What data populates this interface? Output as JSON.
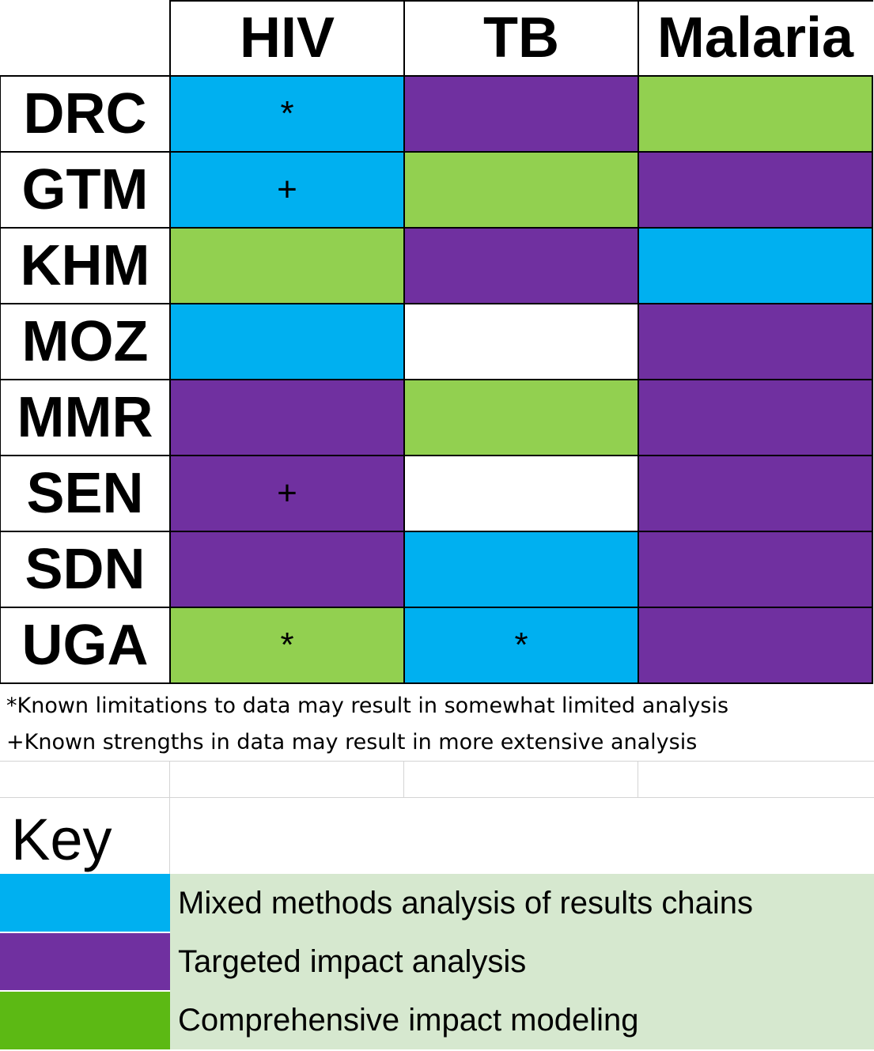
{
  "colors": {
    "mixed": "#00b0f0",
    "targeted": "#7030a0",
    "comprehensive": "#92d050",
    "none": "#ffffff",
    "legend_comprehensive_swatch": "#5cb914",
    "legend_text_bg": "#d6e8cf"
  },
  "table": {
    "columns": [
      "HIV",
      "TB",
      "Malaria"
    ],
    "rows": [
      {
        "label": "DRC",
        "cells": [
          {
            "type": "mixed",
            "mark": "*"
          },
          {
            "type": "targeted",
            "mark": ""
          },
          {
            "type": "comprehensive",
            "mark": ""
          }
        ]
      },
      {
        "label": "GTM",
        "cells": [
          {
            "type": "mixed",
            "mark": "+"
          },
          {
            "type": "comprehensive",
            "mark": ""
          },
          {
            "type": "targeted",
            "mark": ""
          }
        ]
      },
      {
        "label": "KHM",
        "cells": [
          {
            "type": "comprehensive",
            "mark": ""
          },
          {
            "type": "targeted",
            "mark": ""
          },
          {
            "type": "mixed",
            "mark": ""
          }
        ]
      },
      {
        "label": "MOZ",
        "cells": [
          {
            "type": "mixed",
            "mark": ""
          },
          {
            "type": "none",
            "mark": ""
          },
          {
            "type": "targeted",
            "mark": ""
          }
        ]
      },
      {
        "label": "MMR",
        "cells": [
          {
            "type": "targeted",
            "mark": ""
          },
          {
            "type": "comprehensive",
            "mark": ""
          },
          {
            "type": "targeted",
            "mark": ""
          }
        ]
      },
      {
        "label": "SEN",
        "cells": [
          {
            "type": "targeted",
            "mark": "+"
          },
          {
            "type": "none",
            "mark": ""
          },
          {
            "type": "targeted",
            "mark": ""
          }
        ]
      },
      {
        "label": "SDN",
        "cells": [
          {
            "type": "targeted",
            "mark": ""
          },
          {
            "type": "mixed",
            "mark": ""
          },
          {
            "type": "targeted",
            "mark": ""
          }
        ]
      },
      {
        "label": "UGA",
        "cells": [
          {
            "type": "comprehensive",
            "mark": "*"
          },
          {
            "type": "mixed",
            "mark": "*"
          },
          {
            "type": "targeted",
            "mark": ""
          }
        ]
      }
    ]
  },
  "notes": {
    "limitations": "*Known limitations to data may result in somewhat limited analysis",
    "strengths": "+Known strengths in data may result in more extensive analysis"
  },
  "key": {
    "title": "Key",
    "items": [
      {
        "type": "mixed",
        "label": "Mixed methods analysis of results chains"
      },
      {
        "type": "targeted",
        "label": "Targeted impact analysis"
      },
      {
        "type": "comprehensive",
        "label": "Comprehensive impact modeling"
      }
    ]
  }
}
